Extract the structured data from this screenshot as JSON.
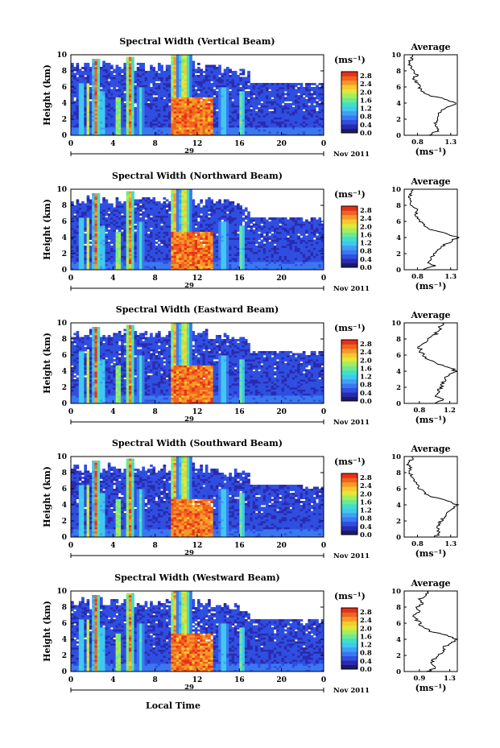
{
  "chart_data": {
    "type": "heatmap",
    "date_label": "Nov 2011",
    "day_label": "29",
    "xlabel": "Local Time",
    "ylabel": "Height (km)",
    "x_ticks": [
      "0",
      "4",
      "8",
      "12",
      "16",
      "20",
      "0"
    ],
    "xlim": [
      0,
      24
    ],
    "y_ticks": [
      "0",
      "2",
      "4",
      "6",
      "8",
      "10"
    ],
    "ylim": [
      0,
      10
    ],
    "colorbar": {
      "unit_label": "(ms⁻¹)",
      "ticks": [
        "0.0",
        "0.4",
        "0.8",
        "1.2",
        "1.6",
        "2.0",
        "2.4",
        "2.8"
      ],
      "range": [
        0,
        3.0
      ],
      "colors": [
        "#1a1a6e",
        "#2a2ab0",
        "#2f4fe0",
        "#3a78f2",
        "#3fa0f5",
        "#40c8f0",
        "#3fe0c8",
        "#6fe890",
        "#a8ec5a",
        "#e0e83a",
        "#f8c830",
        "#f89828",
        "#f06420",
        "#e83018"
      ]
    },
    "average_title": "Average",
    "average_xlabel": "(ms⁻¹)",
    "heights_km": [
      0,
      0.5,
      1,
      1.5,
      2,
      2.5,
      3,
      3.5,
      4,
      4.5,
      5,
      5.5,
      6,
      6.5,
      7,
      7.5,
      8,
      8.5,
      9,
      9.5,
      10
    ],
    "panels": [
      {
        "title": "Spectral Width (Vertical Beam)",
        "avg_ticks": [
          "0.8",
          "1.3"
        ],
        "avg_xlim": [
          0.6,
          1.4
        ],
        "avg_profile": [
          0.95,
          1.1,
          1.08,
          1.06,
          1.1,
          1.12,
          1.14,
          1.25,
          1.38,
          1.22,
          0.95,
          0.86,
          0.82,
          0.8,
          0.74,
          0.8,
          0.72,
          0.7,
          0.66,
          0.72,
          0.72
        ]
      },
      {
        "title": "Spectral Width (Northward Beam)",
        "avg_ticks": [
          "0.8",
          "1.3"
        ],
        "avg_xlim": [
          0.6,
          1.4
        ],
        "avg_profile": [
          0.9,
          1.05,
          0.95,
          1.02,
          1.05,
          1.1,
          1.18,
          1.3,
          1.4,
          1.25,
          1.0,
          0.9,
          0.85,
          0.8,
          0.78,
          0.8,
          0.7,
          0.72,
          0.68,
          0.7,
          0.72
        ]
      },
      {
        "title": "Spectral Width (Eastward Beam)",
        "avg_ticks": [
          "0.8",
          "1.2"
        ],
        "avg_xlim": [
          0.6,
          1.3
        ],
        "avg_profile": [
          0.98,
          1.12,
          1.0,
          1.05,
          1.08,
          1.1,
          1.15,
          1.18,
          1.28,
          1.2,
          1.0,
          0.92,
          0.85,
          0.82,
          0.8,
          0.88,
          0.92,
          1.0,
          1.05,
          1.08,
          1.1
        ]
      },
      {
        "title": "Spectral Width (Southward Beam)",
        "avg_ticks": [
          "0.8",
          "1.3"
        ],
        "avg_xlim": [
          0.6,
          1.4
        ],
        "avg_profile": [
          1.05,
          1.15,
          1.1,
          1.12,
          1.15,
          1.2,
          1.25,
          1.32,
          1.4,
          1.25,
          1.02,
          0.9,
          0.84,
          0.8,
          0.74,
          0.72,
          0.68,
          0.7,
          0.66,
          0.7,
          0.72
        ]
      },
      {
        "title": "Spectral Width (Westward Beam)",
        "avg_ticks": [
          "0.9",
          "1.3"
        ],
        "avg_xlim": [
          0.7,
          1.4
        ],
        "avg_profile": [
          1.0,
          1.12,
          1.05,
          1.1,
          1.15,
          1.2,
          1.22,
          1.3,
          1.38,
          1.25,
          1.05,
          0.95,
          0.9,
          0.86,
          0.82,
          0.9,
          0.88,
          0.95,
          0.9,
          1.0,
          1.02
        ]
      }
    ]
  }
}
